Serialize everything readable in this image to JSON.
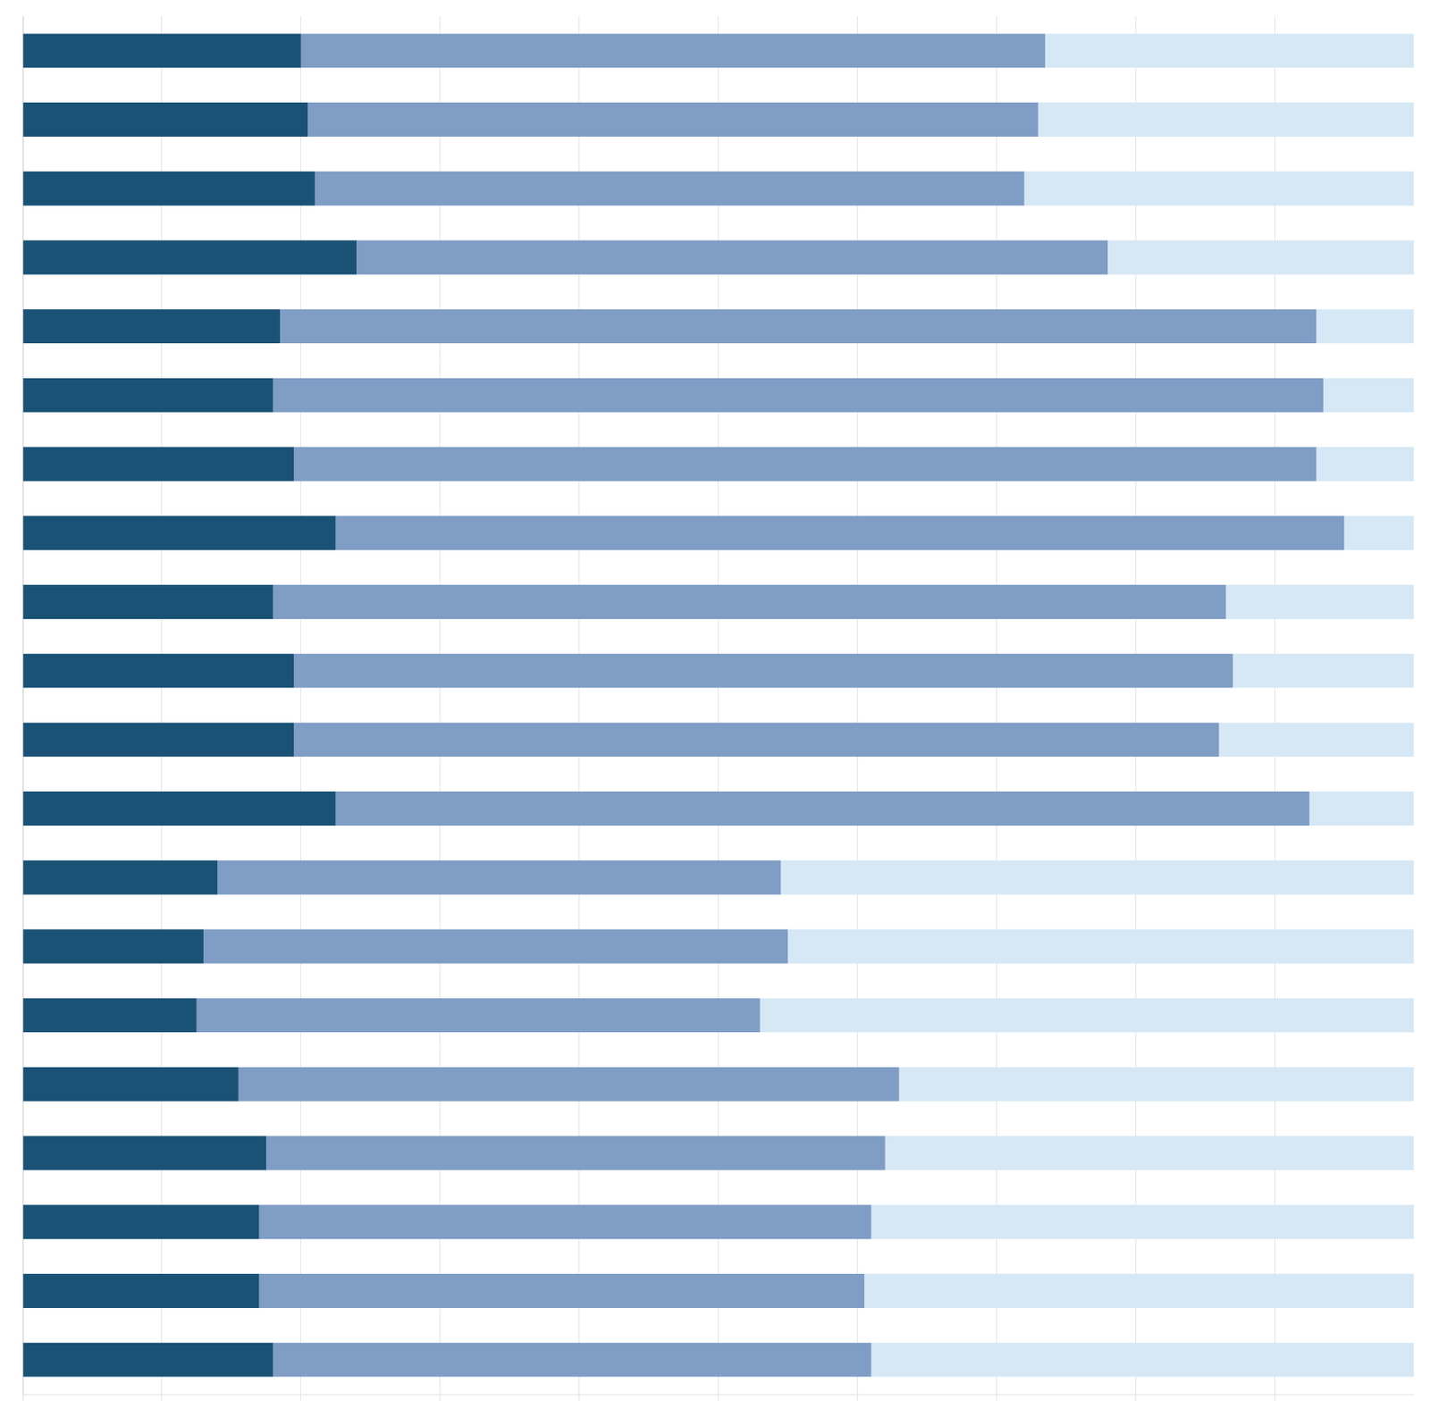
{
  "chart_data": {
    "type": "bar",
    "orientation": "horizontal",
    "stacked": true,
    "categories": [
      null,
      null,
      null,
      null,
      null,
      null,
      null,
      null,
      null,
      null,
      null,
      null,
      null,
      null,
      null,
      null,
      null,
      null,
      null,
      null
    ],
    "series": [
      {
        "color": "#1a5276",
        "values": [
          20.0,
          20.5,
          21.0,
          24.0,
          18.5,
          18.0,
          19.5,
          22.5,
          18.0,
          19.5,
          19.5,
          22.5,
          14.0,
          13.0,
          12.5,
          15.5,
          17.5,
          17.0,
          17.0,
          18.0
        ]
      },
      {
        "color": "#7f9dc5",
        "values": [
          53.5,
          52.5,
          51.0,
          54.0,
          74.5,
          75.5,
          73.5,
          72.5,
          68.5,
          67.5,
          66.5,
          70.0,
          40.5,
          42.0,
          40.5,
          47.5,
          44.5,
          44.0,
          43.5,
          43.0
        ]
      },
      {
        "color": "#d6e8f5",
        "values": [
          26.5,
          27.0,
          28.0,
          22.0,
          7.0,
          6.5,
          7.0,
          5.0,
          13.5,
          13.0,
          14.0,
          7.5,
          45.5,
          45.0,
          47.0,
          37.0,
          38.0,
          39.0,
          39.5,
          39.0
        ]
      }
    ],
    "xlim": [
      0,
      100
    ],
    "xticks": [
      0,
      10,
      20,
      30,
      40,
      50,
      60,
      70,
      80,
      90,
      100
    ],
    "grid": true,
    "tick_labels": false
  }
}
